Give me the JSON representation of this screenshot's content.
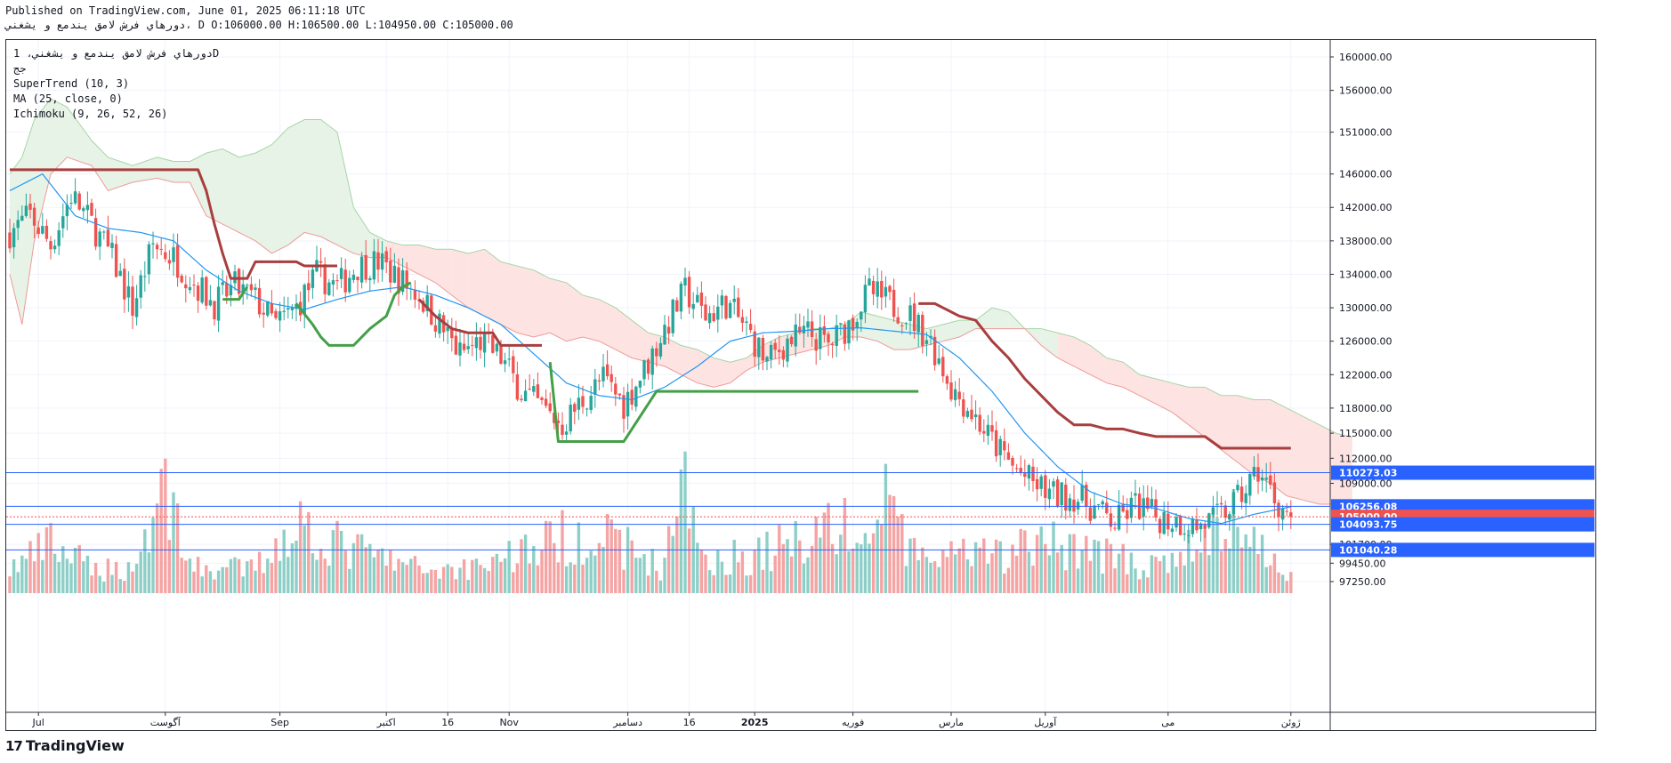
{
  "header": {
    "published": "Published on TradingView.com, June 01, 2025 06:11:18 UTC",
    "symbol_line": "دورهاي فرش لامق يندمع و يشغني، D O:106000.00 H:106500.00 L:104950.00 C:105000.00"
  },
  "legend": {
    "symbol_interval": "دورهاي فرش لامق يندمع و يشغني، 1D",
    "symbol_sub": "جج",
    "supertrend": "SuperTrend (10, 3)",
    "ma": "MA (25, close, 0)",
    "ichimoku": "Ichimoku (9, 26, 52, 26)"
  },
  "footer": {
    "logo_mark": "17",
    "logo_text": "TradingView"
  },
  "colors": {
    "up": "#26a69a",
    "down": "#ef5350",
    "up_vol": "#8dcfc7",
    "down_vol": "#f5a3a3",
    "supertrend_up": "#43a047",
    "supertrend_down": "#a83e3e",
    "ma": "#2196f3",
    "cloud_bull": "#e6f3e6",
    "cloud_bear": "#fde3e1",
    "hline": "#2962ff",
    "axis_text": "#131722"
  },
  "chart_data": {
    "type": "candlestick",
    "price_range": [
      96500,
      162500
    ],
    "price_ticks": [
      160000,
      156000,
      151000,
      146000,
      142000,
      138000,
      134000,
      130000,
      126000,
      122000,
      118000,
      115000,
      112000,
      109000,
      101700,
      99450,
      97250
    ],
    "price_tick_labels": [
      "160000.00",
      "156000.00",
      "151000.00",
      "146000.00",
      "142000.00",
      "138000.00",
      "134000.00",
      "130000.00",
      "126000.00",
      "122000.00",
      "118000.00",
      "115000.00",
      "112000.00",
      "109000.00",
      "101700.00",
      "99450.00",
      "97250.00"
    ],
    "time_labels": [
      {
        "text": "Jul",
        "bar": 7
      },
      {
        "text": "آگوست",
        "bar": 38
      },
      {
        "text": "Sep",
        "bar": 66
      },
      {
        "text": "اكتبر",
        "bar": 92
      },
      {
        "text": "16",
        "bar": 107
      },
      {
        "text": "Nov",
        "bar": 122
      },
      {
        "text": "دسامبر",
        "bar": 151
      },
      {
        "text": "16",
        "bar": 166
      },
      {
        "text": "2025",
        "bar": 182
      },
      {
        "text": "فوریه",
        "bar": 206
      },
      {
        "text": "مارس",
        "bar": 230
      },
      {
        "text": "آوریل",
        "bar": 253
      },
      {
        "text": "می",
        "bar": 283
      },
      {
        "text": "ژوئن",
        "bar": 313
      }
    ],
    "price_lines": [
      {
        "value": 110273.03,
        "label": "110273.03",
        "kind": "line"
      },
      {
        "value": 106256.08,
        "label": "106256.08",
        "kind": "line"
      },
      {
        "value": 105000.0,
        "label": "105000.00",
        "kind": "last"
      },
      {
        "value": 104093.75,
        "label": "104093.75",
        "kind": "line"
      },
      {
        "value": 101040.28,
        "label": "101040.28",
        "kind": "line"
      }
    ],
    "candle_anchors": [
      [
        0,
        139000
      ],
      [
        5,
        141000
      ],
      [
        10,
        137500
      ],
      [
        15,
        143500
      ],
      [
        20,
        140000
      ],
      [
        25,
        136000
      ],
      [
        30,
        130000
      ],
      [
        35,
        137500
      ],
      [
        40,
        136000
      ],
      [
        45,
        133000
      ],
      [
        50,
        130500
      ],
      [
        55,
        132500
      ],
      [
        60,
        131000
      ],
      [
        65,
        128000
      ],
      [
        70,
        130000
      ],
      [
        75,
        134000
      ],
      [
        80,
        132500
      ],
      [
        85,
        135000
      ],
      [
        90,
        135500
      ],
      [
        95,
        133500
      ],
      [
        100,
        131500
      ],
      [
        105,
        128000
      ],
      [
        110,
        124500
      ],
      [
        115,
        126000
      ],
      [
        120,
        124000
      ],
      [
        125,
        120000
      ],
      [
        130,
        118000
      ],
      [
        135,
        116000
      ],
      [
        140,
        119000
      ],
      [
        145,
        121500
      ],
      [
        150,
        118500
      ],
      [
        155,
        122500
      ],
      [
        160,
        127500
      ],
      [
        165,
        132000
      ],
      [
        170,
        129000
      ],
      [
        175,
        130500
      ],
      [
        180,
        127500
      ],
      [
        185,
        123500
      ],
      [
        190,
        126000
      ],
      [
        195,
        127000
      ],
      [
        200,
        125500
      ],
      [
        205,
        128000
      ],
      [
        210,
        132000
      ],
      [
        215,
        130500
      ],
      [
        220,
        129000
      ],
      [
        225,
        126000
      ],
      [
        230,
        120500
      ],
      [
        235,
        117500
      ],
      [
        240,
        114000
      ],
      [
        245,
        111000
      ],
      [
        250,
        109000
      ],
      [
        255,
        107500
      ],
      [
        260,
        107500
      ],
      [
        265,
        106000
      ],
      [
        270,
        104200
      ],
      [
        275,
        106500
      ],
      [
        280,
        105000
      ],
      [
        285,
        104500
      ],
      [
        290,
        103800
      ],
      [
        295,
        104800
      ],
      [
        300,
        107000
      ],
      [
        305,
        110500
      ],
      [
        310,
        106500
      ],
      [
        313,
        105000
      ]
    ],
    "volume_anchors": [
      [
        0,
        2
      ],
      [
        10,
        4
      ],
      [
        20,
        2
      ],
      [
        30,
        2
      ],
      [
        38,
        9
      ],
      [
        45,
        2
      ],
      [
        60,
        2
      ],
      [
        70,
        6
      ],
      [
        80,
        4
      ],
      [
        90,
        3
      ],
      [
        100,
        2
      ],
      [
        110,
        2
      ],
      [
        120,
        3
      ],
      [
        130,
        4
      ],
      [
        140,
        5
      ],
      [
        150,
        4
      ],
      [
        160,
        2
      ],
      [
        163,
        10
      ],
      [
        170,
        3
      ],
      [
        180,
        3
      ],
      [
        190,
        4
      ],
      [
        200,
        6
      ],
      [
        210,
        4
      ],
      [
        215,
        9
      ],
      [
        220,
        3
      ],
      [
        230,
        3
      ],
      [
        240,
        3
      ],
      [
        250,
        4
      ],
      [
        260,
        4
      ],
      [
        270,
        3
      ],
      [
        280,
        2
      ],
      [
        290,
        4
      ],
      [
        298,
        6
      ],
      [
        303,
        5
      ],
      [
        310,
        2
      ],
      [
        313,
        2
      ]
    ],
    "ma_anchors": [
      [
        0,
        144000
      ],
      [
        8,
        146000
      ],
      [
        16,
        141000
      ],
      [
        24,
        139500
      ],
      [
        32,
        139000
      ],
      [
        40,
        138000
      ],
      [
        48,
        134500
      ],
      [
        56,
        132000
      ],
      [
        64,
        130500
      ],
      [
        72,
        129800
      ],
      [
        80,
        131000
      ],
      [
        88,
        132000
      ],
      [
        96,
        132500
      ],
      [
        104,
        131500
      ],
      [
        112,
        130000
      ],
      [
        120,
        128000
      ],
      [
        128,
        124500
      ],
      [
        136,
        121000
      ],
      [
        144,
        119500
      ],
      [
        152,
        119000
      ],
      [
        160,
        120500
      ],
      [
        168,
        123000
      ],
      [
        176,
        126000
      ],
      [
        184,
        127000
      ],
      [
        192,
        127200
      ],
      [
        200,
        127500
      ],
      [
        208,
        127600
      ],
      [
        216,
        127200
      ],
      [
        224,
        126800
      ],
      [
        232,
        124000
      ],
      [
        240,
        120000
      ],
      [
        248,
        115000
      ],
      [
        256,
        111000
      ],
      [
        264,
        108000
      ],
      [
        272,
        106500
      ],
      [
        280,
        106000
      ],
      [
        288,
        104800
      ],
      [
        296,
        104200
      ],
      [
        304,
        105300
      ],
      [
        313,
        106200
      ]
    ],
    "supertrend_segments": [
      {
        "trend": "down",
        "points": [
          [
            0,
            146500
          ],
          [
            46,
            146500
          ],
          [
            48,
            144000
          ],
          [
            50,
            140000
          ],
          [
            52,
            136500
          ],
          [
            54,
            133500
          ],
          [
            58,
            133500
          ],
          [
            60,
            135500
          ],
          [
            70,
            135500
          ],
          [
            72,
            135000
          ],
          [
            80,
            135000
          ]
        ]
      },
      {
        "trend": "up",
        "points": [
          [
            52,
            131000
          ],
          [
            56,
            131000
          ],
          [
            58,
            132500
          ]
        ]
      },
      {
        "trend": "up",
        "points": [
          [
            70,
            130500
          ],
          [
            74,
            128000
          ],
          [
            76,
            126500
          ],
          [
            78,
            125500
          ],
          [
            82,
            125500
          ],
          [
            84,
            125500
          ],
          [
            88,
            127500
          ],
          [
            92,
            129000
          ],
          [
            94,
            131500
          ],
          [
            96,
            132500
          ],
          [
            98,
            133000
          ]
        ]
      },
      {
        "trend": "down",
        "points": [
          [
            100,
            131000
          ],
          [
            104,
            129000
          ],
          [
            108,
            127500
          ],
          [
            112,
            127000
          ],
          [
            118,
            127000
          ],
          [
            120,
            125500
          ],
          [
            124,
            125500
          ],
          [
            130,
            125500
          ]
        ]
      },
      {
        "trend": "up",
        "points": [
          [
            132,
            123500
          ],
          [
            134,
            114000
          ],
          [
            150,
            114000
          ],
          [
            154,
            117000
          ],
          [
            158,
            120000
          ],
          [
            210,
            120000
          ],
          [
            218,
            120000
          ],
          [
            222,
            120000
          ]
        ]
      },
      {
        "trend": "down",
        "points": [
          [
            222,
            130500
          ],
          [
            226,
            130500
          ],
          [
            228,
            130000
          ],
          [
            232,
            129000
          ],
          [
            236,
            128500
          ],
          [
            240,
            126000
          ],
          [
            244,
            124000
          ],
          [
            248,
            121500
          ],
          [
            252,
            119500
          ],
          [
            256,
            117500
          ],
          [
            260,
            116000
          ],
          [
            264,
            116000
          ],
          [
            268,
            115500
          ],
          [
            272,
            115500
          ],
          [
            276,
            115000
          ],
          [
            280,
            114600
          ],
          [
            284,
            114600
          ],
          [
            288,
            114600
          ],
          [
            292,
            114600
          ],
          [
            296,
            113200
          ],
          [
            300,
            113200
          ],
          [
            304,
            113200
          ],
          [
            308,
            113200
          ],
          [
            313,
            113200
          ]
        ]
      }
    ],
    "cloud_anchors": [
      [
        0,
        146000,
        134000
      ],
      [
        3,
        148000,
        128000
      ],
      [
        6,
        152500,
        138000
      ],
      [
        10,
        155000,
        146000
      ],
      [
        14,
        154000,
        148000
      ],
      [
        20,
        150000,
        147000
      ],
      [
        24,
        148000,
        144000
      ],
      [
        30,
        147000,
        145000
      ],
      [
        36,
        148000,
        145500
      ],
      [
        40,
        147500,
        145000
      ],
      [
        44,
        147500,
        145000
      ],
      [
        48,
        148500,
        141000
      ],
      [
        52,
        149000,
        140000
      ],
      [
        56,
        148000,
        139000
      ],
      [
        60,
        148500,
        138000
      ],
      [
        64,
        149500,
        136500
      ],
      [
        68,
        151500,
        137500
      ],
      [
        72,
        152500,
        139000
      ],
      [
        76,
        152500,
        138500
      ],
      [
        80,
        151000,
        137500
      ],
      [
        84,
        142000,
        136500
      ],
      [
        88,
        139000,
        136000
      ],
      [
        92,
        138000,
        136000
      ],
      [
        96,
        137500,
        135000
      ],
      [
        100,
        137500,
        134000
      ],
      [
        104,
        137000,
        133000
      ],
      [
        108,
        137000,
        131500
      ],
      [
        112,
        136500,
        130000
      ],
      [
        116,
        137000,
        129000
      ],
      [
        120,
        135500,
        128000
      ],
      [
        124,
        135000,
        127000
      ],
      [
        128,
        134500,
        126500
      ],
      [
        132,
        133500,
        127000
      ],
      [
        136,
        133000,
        126000
      ],
      [
        140,
        131500,
        126500
      ],
      [
        144,
        131000,
        126000
      ],
      [
        148,
        130000,
        125000
      ],
      [
        152,
        128500,
        124000
      ],
      [
        156,
        127000,
        123500
      ],
      [
        160,
        126500,
        123000
      ],
      [
        164,
        125500,
        122000
      ],
      [
        168,
        125000,
        121000
      ],
      [
        172,
        124000,
        120500
      ],
      [
        176,
        123500,
        121000
      ],
      [
        180,
        124000,
        122500
      ],
      [
        184,
        125500,
        123500
      ],
      [
        188,
        126500,
        124000
      ],
      [
        192,
        127000,
        124500
      ],
      [
        196,
        127500,
        125000
      ],
      [
        200,
        127500,
        125500
      ],
      [
        204,
        128000,
        126500
      ],
      [
        208,
        129500,
        126500
      ],
      [
        212,
        129000,
        126000
      ],
      [
        216,
        128500,
        125000
      ],
      [
        220,
        128000,
        125000
      ],
      [
        224,
        127500,
        125500
      ],
      [
        228,
        128000,
        126000
      ],
      [
        232,
        128500,
        126500
      ],
      [
        236,
        128500,
        127500
      ],
      [
        240,
        130000,
        127500
      ],
      [
        244,
        129500,
        127500
      ],
      [
        248,
        127500,
        127500
      ],
      [
        252,
        127500,
        125500
      ],
      [
        256,
        127000,
        124000
      ],
      [
        260,
        126500,
        123000
      ],
      [
        264,
        125500,
        122000
      ],
      [
        268,
        124000,
        121000
      ],
      [
        272,
        123500,
        120500
      ],
      [
        276,
        122000,
        119500
      ],
      [
        280,
        121500,
        118500
      ],
      [
        284,
        121000,
        117500
      ],
      [
        288,
        120500,
        116000
      ],
      [
        292,
        120500,
        114500
      ],
      [
        296,
        119500,
        113000
      ],
      [
        300,
        119500,
        111500
      ],
      [
        304,
        119000,
        110000
      ],
      [
        308,
        119000,
        109000
      ],
      [
        312,
        118000,
        107500
      ],
      [
        316,
        117000,
        107000
      ],
      [
        320,
        116000,
        106500
      ],
      [
        324,
        115000,
        106500
      ],
      [
        328,
        114500,
        106000
      ]
    ]
  }
}
